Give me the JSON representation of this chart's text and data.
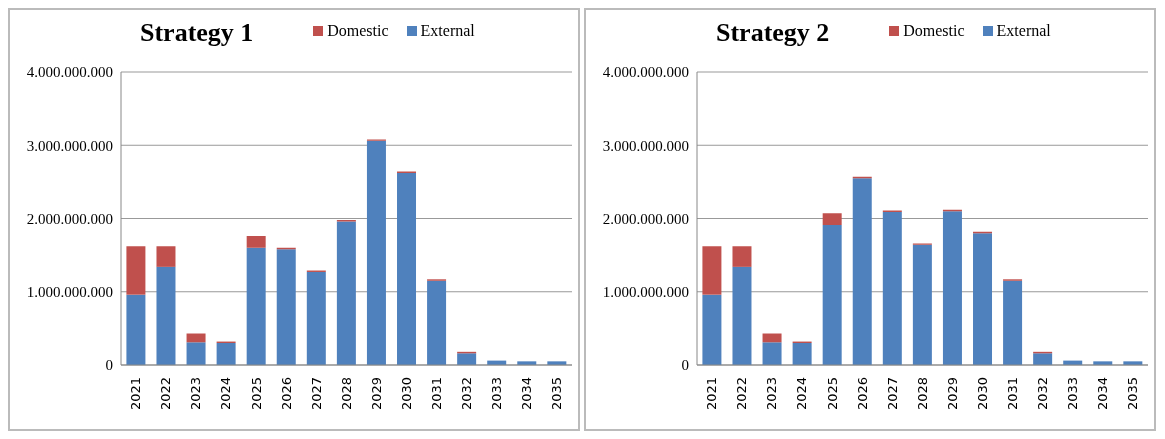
{
  "chart_data": [
    {
      "type": "bar",
      "title": "Strategy 1",
      "stacked": true,
      "legend": "top",
      "grid": "y",
      "categories": [
        "2021",
        "2022",
        "2023",
        "2024",
        "2025",
        "2026",
        "2027",
        "2028",
        "2029",
        "2030",
        "2031",
        "2032",
        "2033",
        "2034",
        "2035"
      ],
      "series": [
        {
          "name": "External",
          "color": "#4f81bd",
          "values": [
            960000000,
            1340000000,
            310000000,
            300000000,
            1600000000,
            1580000000,
            1270000000,
            1960000000,
            3060000000,
            2620000000,
            1150000000,
            160000000,
            60000000,
            50000000,
            50000000
          ]
        },
        {
          "name": "Domestic",
          "color": "#c0504d",
          "values": [
            660000000,
            280000000,
            120000000,
            20000000,
            160000000,
            20000000,
            20000000,
            20000000,
            20000000,
            20000000,
            20000000,
            20000000,
            0,
            0,
            0
          ]
        }
      ],
      "ylim": [
        0,
        4000000000
      ],
      "yticks": [
        {
          "value": 0,
          "label": "0"
        },
        {
          "value": 1000000000,
          "label": "1.000.000.000"
        },
        {
          "value": 2000000000,
          "label": "2.000.000.000"
        },
        {
          "value": 3000000000,
          "label": "3.000.000.000"
        },
        {
          "value": 4000000000,
          "label": "4.000.000.000"
        }
      ]
    },
    {
      "type": "bar",
      "title": "Strategy 2",
      "stacked": true,
      "legend": "top",
      "grid": "y",
      "categories": [
        "2021",
        "2022",
        "2023",
        "2024",
        "2025",
        "2026",
        "2027",
        "2028",
        "2029",
        "2030",
        "2031",
        "2032",
        "2033",
        "2034",
        "2035"
      ],
      "series": [
        {
          "name": "External",
          "color": "#4f81bd",
          "values": [
            960000000,
            1340000000,
            310000000,
            300000000,
            1910000000,
            2550000000,
            2090000000,
            1640000000,
            2100000000,
            1800000000,
            1150000000,
            160000000,
            60000000,
            50000000,
            50000000
          ]
        },
        {
          "name": "Domestic",
          "color": "#c0504d",
          "values": [
            660000000,
            280000000,
            120000000,
            20000000,
            160000000,
            20000000,
            20000000,
            20000000,
            20000000,
            20000000,
            20000000,
            20000000,
            0,
            0,
            0
          ]
        }
      ],
      "ylim": [
        0,
        4000000000
      ],
      "yticks": [
        {
          "value": 0,
          "label": "0"
        },
        {
          "value": 1000000000,
          "label": "1.000.000.000"
        },
        {
          "value": 2000000000,
          "label": "2.000.000.000"
        },
        {
          "value": 3000000000,
          "label": "3.000.000.000"
        },
        {
          "value": 4000000000,
          "label": "4.000.000.000"
        }
      ]
    }
  ]
}
